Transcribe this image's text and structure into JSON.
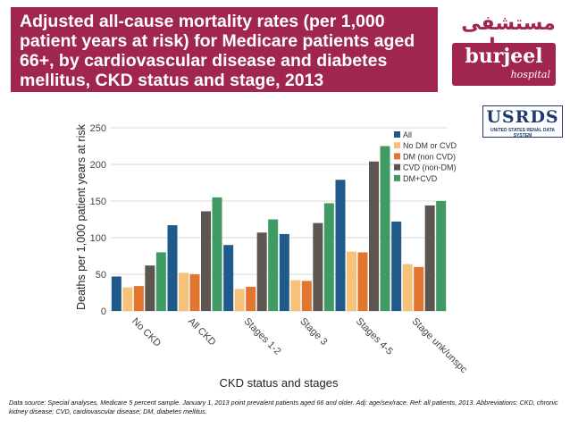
{
  "header": {
    "title": "Adjusted all-cause mortality rates (per 1,000 patient years at risk) for Medicare patients aged 66+, by cardiovascular disease and diabetes mellitus, CKD status and stage, 2013"
  },
  "logo": {
    "arabic": "مستشفى برجيل",
    "name": "burjeel",
    "sub": "hospital"
  },
  "usrds": {
    "name": "USRDS",
    "sub": "UNITED STATES RENAL DATA SYSTEM"
  },
  "colors": {
    "header_bg": "#a0264f",
    "all": "#1f5a8a",
    "no_dm_cvd": "#f6c27a",
    "dm_non_cvd": "#e3762f",
    "cvd_non_dm": "#5d5550",
    "dm_cvd": "#3f9a64"
  },
  "chart_data": {
    "type": "bar",
    "xlabel": "CKD status and stages",
    "ylabel": "Deaths per 1,000 patient years at risk",
    "ylim": [
      0,
      250
    ],
    "yticks": [
      0,
      50,
      100,
      150,
      200,
      250
    ],
    "grid": true,
    "legend_position": "top-right",
    "categories": [
      "No CKD",
      "All CKD",
      "Stages 1-2",
      "Stage 3",
      "Stages 4-5",
      "Stage unk/unspc"
    ],
    "series": [
      {
        "name": "All",
        "color": "#1f5a8a",
        "values": [
          47,
          117,
          90,
          105,
          179,
          122
        ]
      },
      {
        "name": "No DM or CVD",
        "color": "#f6c27a",
        "values": [
          32,
          52,
          30,
          42,
          81,
          64
        ]
      },
      {
        "name": "DM (non CVD)",
        "color": "#e3762f",
        "values": [
          34,
          50,
          33,
          41,
          80,
          60
        ]
      },
      {
        "name": "CVD (non-DM)",
        "color": "#5d5550",
        "values": [
          62,
          136,
          107,
          120,
          204,
          144
        ]
      },
      {
        "name": "DM+CVD",
        "color": "#3f9a64",
        "values": [
          80,
          155,
          125,
          147,
          225,
          150
        ]
      }
    ]
  },
  "footnote": "Data source: Special analyses, Medicare 5 percent sample. January 1, 2013 point prevalent patients aged 66 and older. Adj: age/sex/race. Ref: all patients, 2013. Abbreviations: CKD, chronic kidney disease; CVD, cardiovascular disease; DM, diabetes mellitus."
}
